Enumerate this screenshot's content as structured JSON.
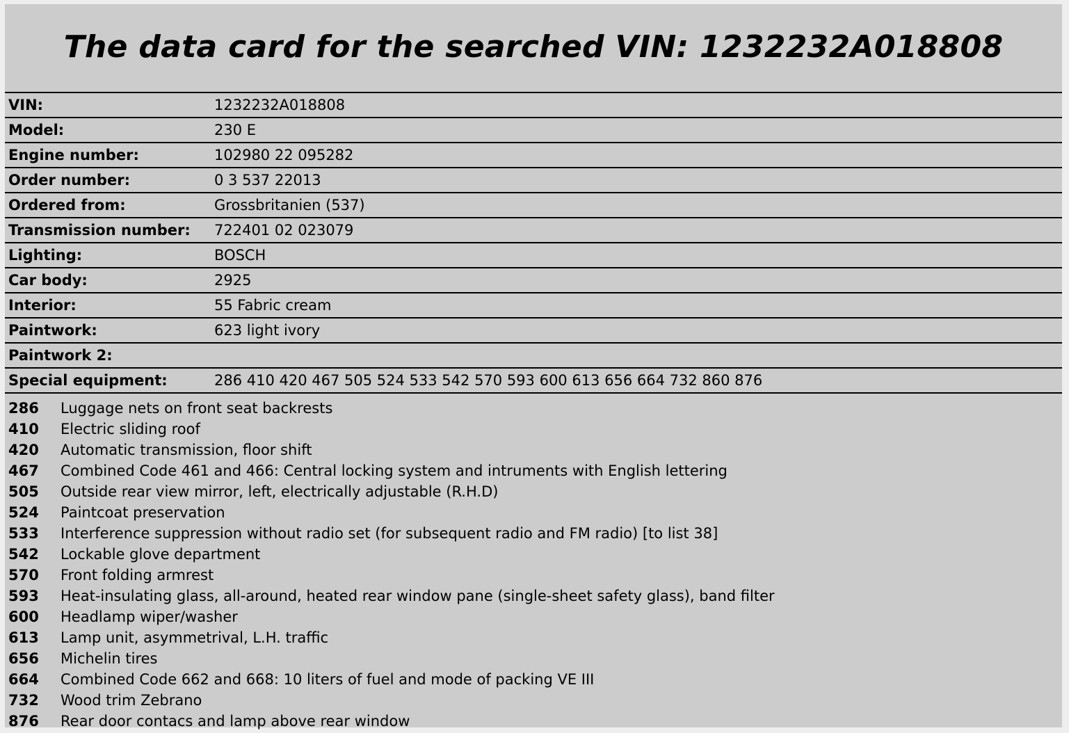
{
  "title": "The data card for the searched VIN: 1232232A018808",
  "fields": [
    {
      "label": "VIN:",
      "value": "1232232A018808"
    },
    {
      "label": "Model:",
      "value": "230 E"
    },
    {
      "label": "Engine number:",
      "value": "102980 22 095282"
    },
    {
      "label": "Order number:",
      "value": "0 3 537 22013"
    },
    {
      "label": "Ordered from:",
      "value": "Grossbritanien (537)"
    },
    {
      "label": "Transmission number:",
      "value": "722401 02 023079"
    },
    {
      "label": "Lighting:",
      "value": "BOSCH"
    },
    {
      "label": "Car body:",
      "value": "2925"
    },
    {
      "label": "Interior:",
      "value": "55 Fabric cream"
    },
    {
      "label": "Paintwork:",
      "value": "623 light ivory"
    },
    {
      "label": "Paintwork 2:",
      "value": ""
    },
    {
      "label": "Special equipment:",
      "value": "286 410 420 467 505 524 533 542 570 593 600 613 656 664 732 860 876"
    }
  ],
  "equipment": [
    {
      "code": "286",
      "description": "Luggage nets on front seat backrests"
    },
    {
      "code": "410",
      "description": "Electric sliding roof"
    },
    {
      "code": "420",
      "description": "Automatic transmission, floor shift"
    },
    {
      "code": "467",
      "description": "Combined Code 461 and 466: Central locking system and intruments with English lettering"
    },
    {
      "code": "505",
      "description": "Outside rear view mirror, left, electrically adjustable (R.H.D)"
    },
    {
      "code": "524",
      "description": "Paintcoat preservation"
    },
    {
      "code": "533",
      "description": "Interference suppression without radio set (for subsequent radio and FM radio) [to list 38]"
    },
    {
      "code": "542",
      "description": "Lockable glove department"
    },
    {
      "code": "570",
      "description": "Front folding armrest"
    },
    {
      "code": "593",
      "description": "Heat-insulating glass, all-around, heated rear window pane (single-sheet safety glass), band filter"
    },
    {
      "code": "600",
      "description": "Headlamp wiper/washer"
    },
    {
      "code": "613",
      "description": "Lamp unit, asymmetrival, L.H. traffic"
    },
    {
      "code": "656",
      "description": "Michelin tires"
    },
    {
      "code": "664",
      "description": "Combined Code 662 and 668: 10 liters of fuel and mode of packing VE III"
    },
    {
      "code": "732",
      "description": "Wood trim Zebrano"
    },
    {
      "code": "876",
      "description": "Rear door contacs and lamp above rear window"
    }
  ]
}
